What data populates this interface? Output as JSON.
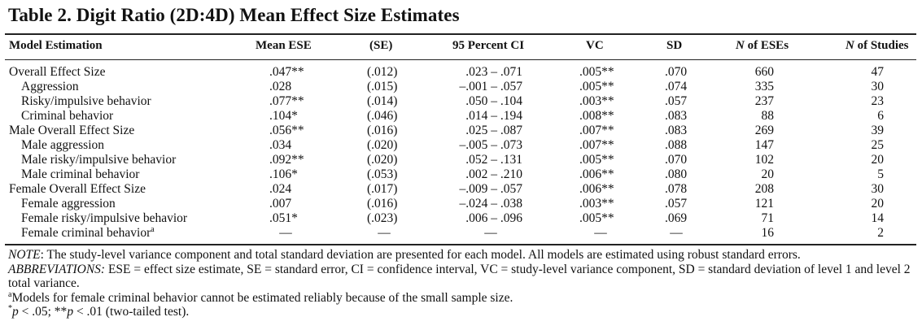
{
  "title": "Table 2.  Digit Ratio (2D:4D) Mean Effect Size Estimates",
  "headers": {
    "model": "Model Estimation",
    "mean_ese": "Mean ESE",
    "se": "(SE)",
    "ci": "95 Percent CI",
    "vc": "VC",
    "sd": "SD",
    "n_eses_italic": "N",
    "n_eses_rest": " of ESEs",
    "n_studies_italic": "N",
    "n_studies_rest": " of Studies"
  },
  "rows": [
    {
      "label": "Overall Effect Size",
      "indent": false,
      "ese": ".047**",
      "se": "(.012)",
      "ci": ".023 – .071",
      "vc": ".005**",
      "sd": ".070",
      "neses": "660",
      "nstudies": "47"
    },
    {
      "label": "Aggression",
      "indent": true,
      "ese": ".028",
      "se": "(.015)",
      "ci": "–.001 – .057",
      "vc": ".005**",
      "sd": ".074",
      "neses": "335",
      "nstudies": "30"
    },
    {
      "label": "Risky/impulsive behavior",
      "indent": true,
      "ese": ".077**",
      "se": "(.014)",
      "ci": ".050 – .104",
      "vc": ".003**",
      "sd": ".057",
      "neses": "237",
      "nstudies": "23"
    },
    {
      "label": "Criminal behavior",
      "indent": true,
      "ese": ".104*",
      "se": "(.046)",
      "ci": ".014 – .194",
      "vc": ".008**",
      "sd": ".083",
      "neses": "88",
      "nstudies": "6"
    },
    {
      "label": "Male Overall Effect Size",
      "indent": false,
      "ese": ".056**",
      "se": "(.016)",
      "ci": ".025 – .087",
      "vc": ".007**",
      "sd": ".083",
      "neses": "269",
      "nstudies": "39"
    },
    {
      "label": "Male aggression",
      "indent": true,
      "ese": ".034",
      "se": "(.020)",
      "ci": "–.005 – .073",
      "vc": ".007**",
      "sd": ".088",
      "neses": "147",
      "nstudies": "25"
    },
    {
      "label": "Male risky/impulsive behavior",
      "indent": true,
      "ese": ".092**",
      "se": "(.020)",
      "ci": ".052 – .131",
      "vc": ".005**",
      "sd": ".070",
      "neses": "102",
      "nstudies": "20"
    },
    {
      "label": "Male criminal behavior",
      "indent": true,
      "ese": ".106*",
      "se": "(.053)",
      "ci": ".002 – .210",
      "vc": ".006**",
      "sd": ".080",
      "neses": "20",
      "nstudies": "5"
    },
    {
      "label": "Female Overall Effect Size",
      "indent": false,
      "ese": ".024",
      "se": "(.017)",
      "ci": "–.009 – .057",
      "vc": ".006**",
      "sd": ".078",
      "neses": "208",
      "nstudies": "30"
    },
    {
      "label": "Female aggression",
      "indent": true,
      "ese": ".007",
      "se": "(.016)",
      "ci": "–.024 – .038",
      "vc": ".003**",
      "sd": ".057",
      "neses": "121",
      "nstudies": "20"
    },
    {
      "label": "Female risky/impulsive behavior",
      "indent": true,
      "ese": ".051*",
      "se": "(.023)",
      "ci": ".006 – .096",
      "vc": ".005**",
      "sd": ".069",
      "neses": "71",
      "nstudies": "14"
    },
    {
      "label": "Female criminal behavior",
      "label_sup": "a",
      "indent": true,
      "ese": "—",
      "se": "—",
      "ci": "—",
      "vc": "—",
      "sd": "—",
      "neses": "16",
      "nstudies": "2"
    }
  ],
  "notes": {
    "note_label": "NOTE",
    "note_text": ": The study-level variance component and total standard deviation are presented for each model. All models are estimated using robust standard errors.",
    "abbrev_label": "ABBREVIATIONS:",
    "abbrev_text": " ESE = effect size estimate, SE = standard error, CI = confidence interval, VC = study-level variance component, SD = standard deviation of level 1 and level 2 total variance.",
    "footnote_marker": "a",
    "footnote_text": "Models for female criminal behavior cannot be estimated reliably because of the small sample size.",
    "sig_star1": "*",
    "sig_p1": "p",
    "sig_text1": " < .05; **",
    "sig_p2": "p",
    "sig_text2": " < .01 (two-tailed test)."
  }
}
